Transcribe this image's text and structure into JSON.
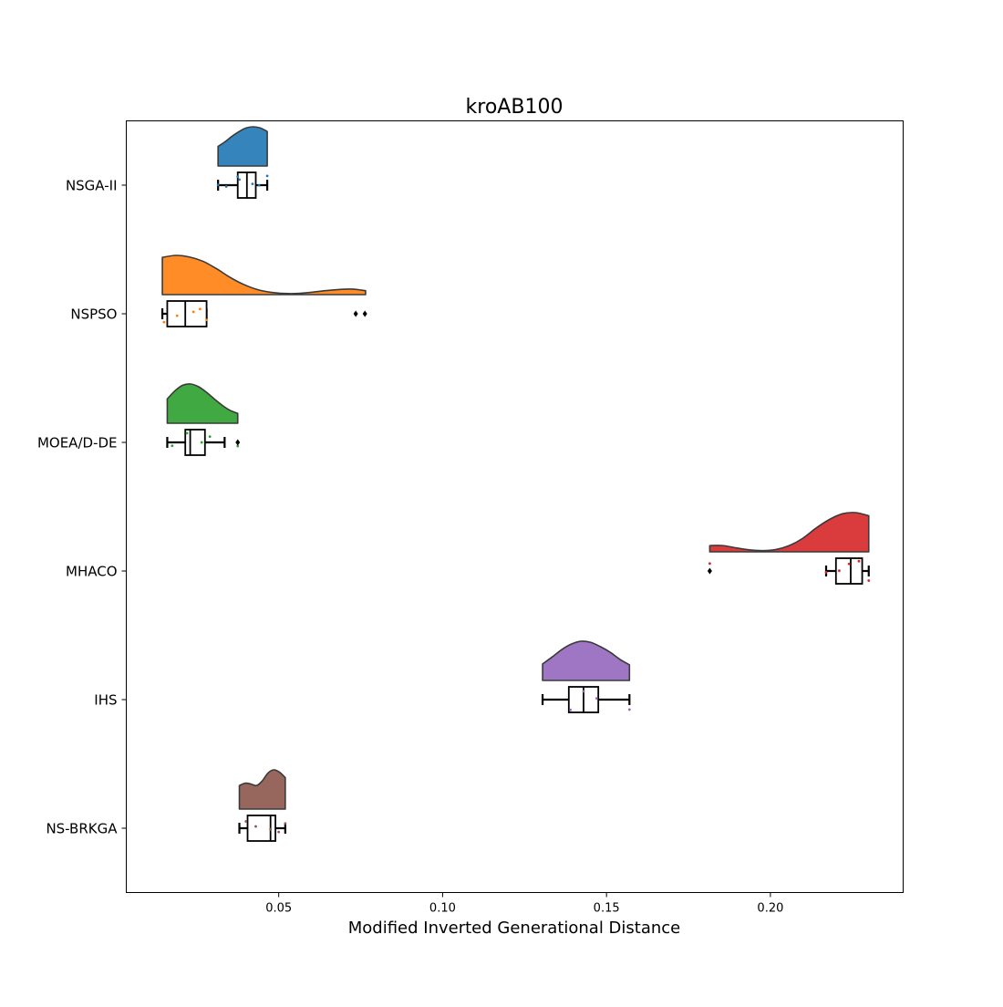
{
  "chart_data": {
    "type": "raincloud",
    "title": "kroAB100",
    "xlabel": "Modified Inverted Generational Distance",
    "ylabel": "",
    "xlim": [
      0.0035,
      0.2405
    ],
    "xticks": [
      0.05,
      0.1,
      0.15,
      0.2
    ],
    "xtick_labels": [
      "0.05",
      "0.10",
      "0.15",
      "0.20"
    ],
    "grid": false,
    "legend": "none",
    "series": [
      {
        "name": "NSGA-II",
        "color": "#1f77b4",
        "range": [
          0.0315,
          0.0465
        ],
        "box": {
          "whisker_low": 0.0315,
          "q1": 0.0375,
          "median": 0.0403,
          "q3": 0.043,
          "whisker_high": 0.0465
        },
        "outliers": [],
        "points": [
          0.0315,
          0.034,
          0.0375,
          0.038,
          0.042,
          0.044,
          0.0465
        ],
        "density": [
          0.5,
          0.62,
          0.76,
          0.88,
          0.97,
          1.0,
          0.97,
          0.88
        ]
      },
      {
        "name": "NSPSO",
        "color": "#ff7f0e",
        "range": [
          0.0145,
          0.0765
        ],
        "box": {
          "whisker_low": 0.0145,
          "q1": 0.016,
          "median": 0.0215,
          "q3": 0.028,
          "whisker_high": 0.028
        },
        "outliers": [
          0.0735,
          0.0763
        ],
        "points": [
          0.015,
          0.019,
          0.024,
          0.026,
          0.028
        ],
        "density": [
          0.95,
          1.0,
          0.96,
          0.85,
          0.66,
          0.44,
          0.26,
          0.13,
          0.06,
          0.03,
          0.03,
          0.06,
          0.1,
          0.13,
          0.14,
          0.1
        ]
      },
      {
        "name": "MOEA/D-DE",
        "color": "#2ca02c",
        "range": [
          0.016,
          0.0375
        ],
        "box": {
          "whisker_low": 0.016,
          "q1": 0.0215,
          "median": 0.023,
          "q3": 0.0275,
          "whisker_high": 0.0335
        },
        "outliers": [
          0.0375
        ],
        "points": [
          0.0175,
          0.022,
          0.0265,
          0.029,
          0.0375
        ],
        "density": [
          0.62,
          0.83,
          0.97,
          1.0,
          0.93,
          0.79,
          0.62,
          0.46,
          0.33,
          0.25
        ]
      },
      {
        "name": "MHACO",
        "color": "#d62728",
        "range": [
          0.1815,
          0.23
        ],
        "box": {
          "whisker_low": 0.217,
          "q1": 0.22,
          "median": 0.2245,
          "q3": 0.228,
          "whisker_high": 0.23
        },
        "outliers": [
          0.1815
        ],
        "points": [
          0.1815,
          0.217,
          0.221,
          0.224,
          0.227,
          0.23
        ],
        "density": [
          0.16,
          0.16,
          0.1,
          0.05,
          0.03,
          0.06,
          0.16,
          0.34,
          0.6,
          0.82,
          0.97,
          1.0,
          0.92
        ]
      },
      {
        "name": "IHS",
        "color": "#9467bd",
        "range": [
          0.1305,
          0.157
        ],
        "box": {
          "whisker_low": 0.1305,
          "q1": 0.1385,
          "median": 0.143,
          "q3": 0.1475,
          "whisker_high": 0.157
        },
        "outliers": [],
        "points": [
          0.139,
          0.143,
          0.147,
          0.157
        ],
        "density": [
          0.42,
          0.6,
          0.79,
          0.93,
          1.0,
          0.97,
          0.86,
          0.72,
          0.54,
          0.4
        ]
      },
      {
        "name": "NS-BRKGA",
        "color": "#8c564b",
        "range": [
          0.038,
          0.052
        ],
        "box": {
          "whisker_low": 0.038,
          "q1": 0.0405,
          "median": 0.0475,
          "q3": 0.049,
          "whisker_high": 0.052
        },
        "outliers": [],
        "points": [
          0.04,
          0.043,
          0.0475,
          0.05,
          0.052
        ],
        "density": [
          0.6,
          0.66,
          0.64,
          0.6,
          0.72,
          0.92,
          1.0,
          0.94,
          0.8
        ]
      }
    ]
  }
}
